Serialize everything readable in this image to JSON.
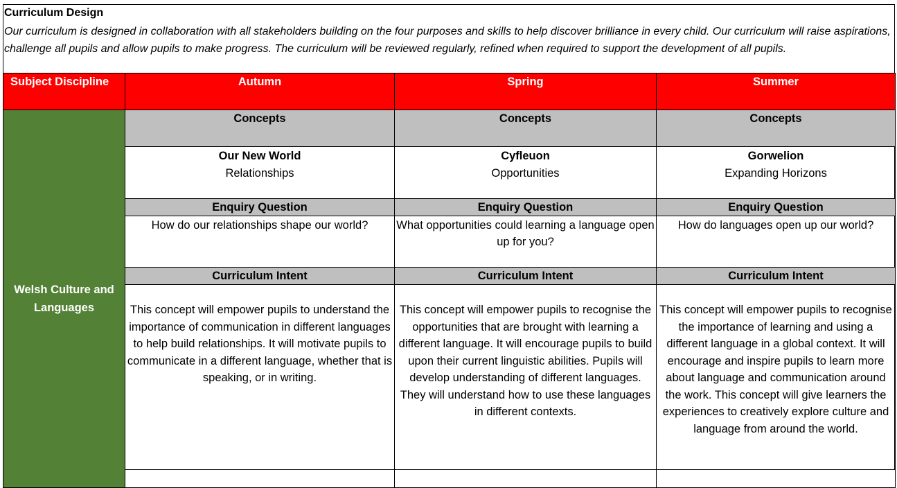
{
  "header": {
    "title": "Curriculum Design",
    "intro": "Our curriculum is designed in collaboration with all stakeholders building on the four purposes and skills to help discover brilliance in every child. Our curriculum will raise aspirations, challenge all pupils and allow pupils to make progress. The curriculum will be reviewed regularly, refined when required to support the development of all pupils."
  },
  "table": {
    "col_headers": [
      "Subject Discipline",
      "Autumn",
      "Spring",
      "Summer"
    ],
    "subject": "Welsh Culture and Languages",
    "concepts_label": "Concepts",
    "enquiry_label": "Enquiry Question",
    "intent_label": "Curriculum Intent",
    "terms": [
      {
        "concept_title": "Our New World",
        "concept_sub": "Relationships",
        "question": "How do our relationships shape our world?",
        "intent": "This concept will empower pupils to understand the importance of communication in different languages to help build relationships. It will motivate pupils to communicate in a different language, whether that is speaking, or in writing."
      },
      {
        "concept_title": "Cyfleuon",
        "concept_sub": "Opportunities",
        "question": "What opportunities could learning a language open up for you?",
        "intent": "This concept will empower pupils to recognise the opportunities that are brought with learning a different language. It will encourage pupils to build upon their current linguistic abilities. Pupils will develop understanding of different languages. They will understand how to use these languages in different contexts."
      },
      {
        "concept_title": "Gorwelion",
        "concept_sub": "Expanding Horizons",
        "question": "How do languages open up our world?",
        "intent": "This concept will empower pupils to recognise the importance of learning and using a different language in a global context. It will encourage and inspire pupils to learn more about language and communication around the work. This concept will give learners the experiences to creatively explore culture and language from around the world."
      }
    ]
  },
  "colors": {
    "header_red": "#ff0000",
    "subject_green": "#538135",
    "label_grey": "#bfbfbf"
  }
}
